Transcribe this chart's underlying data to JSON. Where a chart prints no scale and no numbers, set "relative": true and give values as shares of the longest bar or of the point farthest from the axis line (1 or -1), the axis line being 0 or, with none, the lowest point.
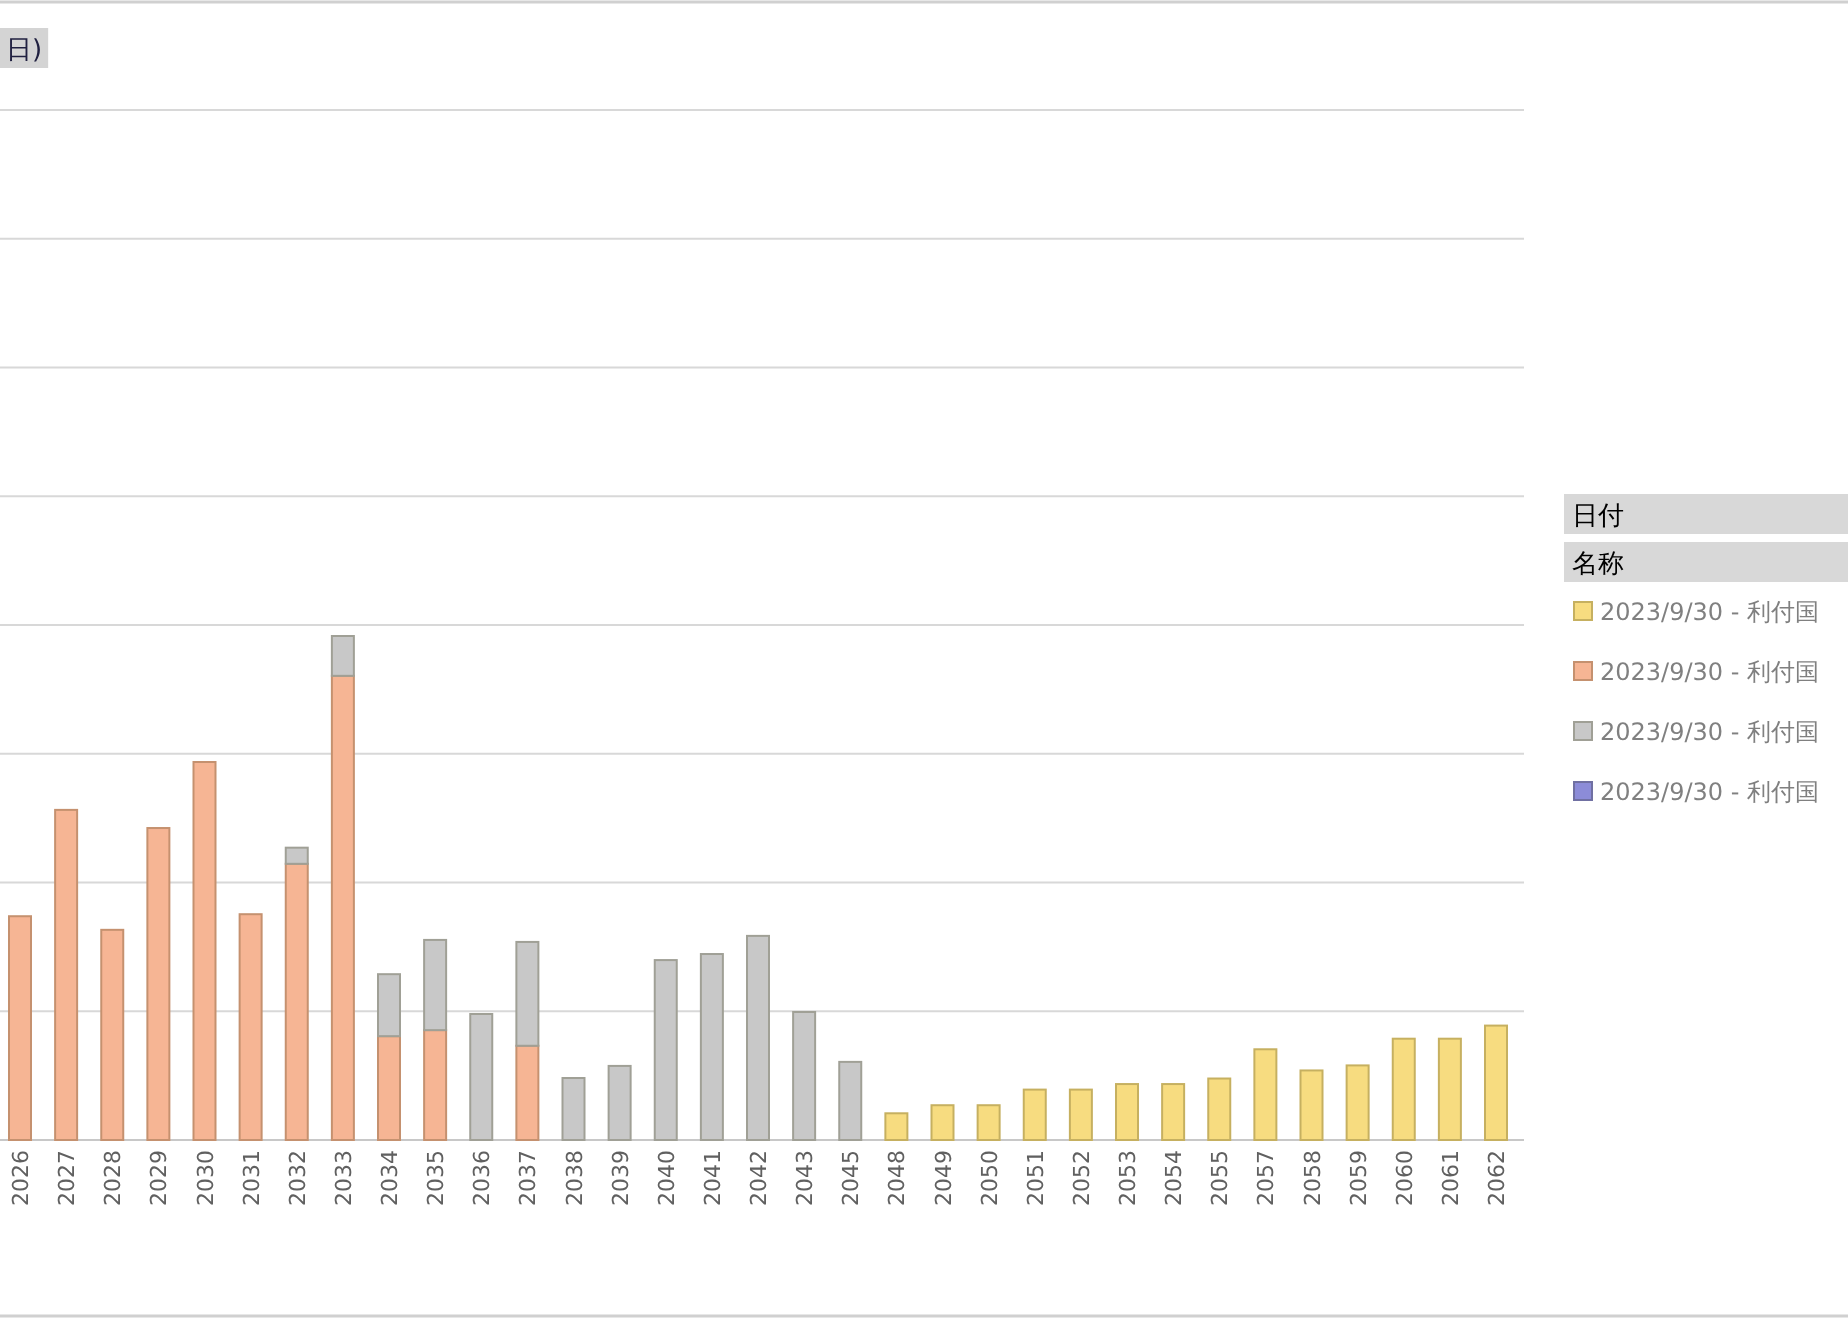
{
  "chart_data": {
    "type": "bar",
    "title": "日)",
    "stacked": true,
    "relative": true,
    "grid": "y",
    "legend": "right",
    "legend_title": "日付",
    "annotations": [
      "名称"
    ],
    "categories": [
      "2026",
      "2027",
      "2028",
      "2029",
      "2030",
      "2031",
      "2032",
      "2033",
      "2034",
      "2035",
      "2036",
      "2037",
      "2038",
      "2039",
      "2040",
      "2041",
      "2042",
      "2043",
      "2045",
      "2048",
      "2049",
      "2050",
      "2051",
      "2052",
      "2053",
      "2054",
      "2055",
      "2057",
      "2058",
      "2059",
      "2060",
      "2061",
      "2062"
    ],
    "series": [
      {
        "name": "2023/9/30 - 利付国",
        "color": "#f7dc80",
        "values": [
          null,
          null,
          null,
          null,
          null,
          null,
          null,
          null,
          null,
          null,
          null,
          null,
          null,
          null,
          null,
          null,
          null,
          null,
          null,
          0.053,
          0.069,
          0.069,
          0.1,
          0.1,
          0.111,
          0.111,
          0.122,
          0.18,
          0.138,
          0.148,
          0.201,
          0.201,
          0.227
        ]
      },
      {
        "name": "2023/9/30 - 利付国",
        "color": "#f6b594",
        "values": [
          0.444,
          0.655,
          0.417,
          0.619,
          0.75,
          0.448,
          0.548,
          0.921,
          0.206,
          0.218,
          null,
          0.187,
          null,
          null,
          null,
          null,
          null,
          null,
          null,
          null,
          null,
          null,
          null,
          null,
          null,
          null,
          null,
          null,
          null,
          null,
          null,
          null,
          null
        ]
      },
      {
        "name": "2023/9/30 - 利付国",
        "color": "#c8c8c8",
        "values": [
          null,
          null,
          null,
          null,
          null,
          null,
          0.032,
          0.079,
          0.123,
          0.179,
          0.25,
          0.206,
          0.123,
          0.147,
          0.357,
          0.369,
          0.405,
          0.254,
          0.155,
          null,
          null,
          null,
          null,
          null,
          null,
          null,
          null,
          null,
          null,
          null,
          null,
          null,
          null
        ]
      },
      {
        "name": "2023/9/30 - 利付国",
        "color": "#8c8cd8",
        "values": [
          null,
          null,
          null,
          null,
          null,
          null,
          null,
          null,
          null,
          null,
          null,
          null,
          null,
          null,
          null,
          null,
          null,
          null,
          null,
          null,
          null,
          null,
          null,
          null,
          null,
          null,
          null,
          null,
          null,
          null,
          null,
          null,
          null
        ]
      }
    ]
  }
}
